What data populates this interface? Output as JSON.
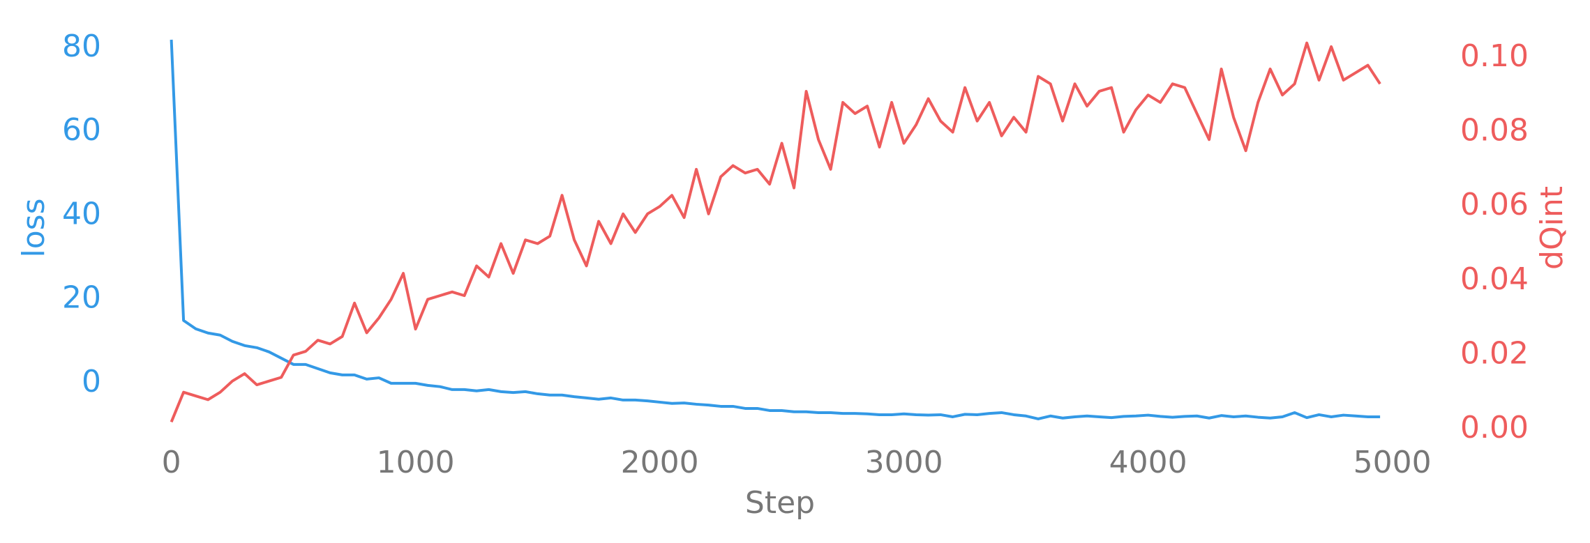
{
  "chart_data": {
    "type": "line",
    "xlabel": "Step",
    "ylabel": "loss",
    "y2label": "dQint",
    "xlim": [
      0,
      5000
    ],
    "xticks": [
      0,
      1000,
      2000,
      3000,
      4000,
      5000
    ],
    "ylim": [
      -11,
      83
    ],
    "yticks": [
      0,
      20,
      40,
      60,
      80
    ],
    "y2lim": [
      0,
      0.106
    ],
    "y2ticks": [
      {
        "value": 0,
        "label": "0.00"
      },
      {
        "value": 0.02,
        "label": "0.02"
      },
      {
        "value": 0.04,
        "label": "0.04"
      },
      {
        "value": 0.06,
        "label": "0.06"
      },
      {
        "value": 0.08,
        "label": "0.08"
      },
      {
        "value": 0.1,
        "label": "0.10"
      }
    ],
    "grid": false,
    "x": [
      0,
      50,
      100,
      150,
      200,
      250,
      300,
      350,
      400,
      450,
      500,
      550,
      600,
      650,
      700,
      750,
      800,
      850,
      900,
      950,
      1000,
      1050,
      1100,
      1150,
      1200,
      1250,
      1300,
      1350,
      1400,
      1450,
      1500,
      1550,
      1600,
      1650,
      1700,
      1750,
      1800,
      1850,
      1900,
      1950,
      2000,
      2050,
      2100,
      2150,
      2200,
      2250,
      2300,
      2350,
      2400,
      2450,
      2500,
      2550,
      2600,
      2650,
      2700,
      2750,
      2800,
      2850,
      2900,
      2950,
      3000,
      3050,
      3100,
      3150,
      3200,
      3250,
      3300,
      3350,
      3400,
      3450,
      3500,
      3550,
      3600,
      3650,
      3700,
      3750,
      3800,
      3850,
      3900,
      3950,
      4000,
      4050,
      4100,
      4150,
      4200,
      4250,
      4300,
      4350,
      4400,
      4450,
      4500,
      4550,
      4600,
      4650,
      4700,
      4750,
      4800,
      4850,
      4900,
      4950
    ],
    "series": [
      {
        "color": "#3399e6",
        "axis": "y",
        "values": [
          82,
          15,
          13,
          12,
          11.5,
          10,
          9,
          8.5,
          7.5,
          6,
          4.5,
          4.5,
          3.5,
          2.5,
          2,
          2,
          1,
          1.3,
          0,
          0,
          0,
          -0.5,
          -0.8,
          -1.5,
          -1.5,
          -1.8,
          -1.5,
          -2,
          -2.2,
          -2,
          -2.5,
          -2.8,
          -2.8,
          -3.2,
          -3.5,
          -3.8,
          -3.5,
          -4,
          -4,
          -4.2,
          -4.5,
          -4.8,
          -4.7,
          -5,
          -5.2,
          -5.5,
          -5.5,
          -6,
          -6,
          -6.5,
          -6.5,
          -6.8,
          -6.8,
          -7,
          -7,
          -7.2,
          -7.2,
          -7.3,
          -7.5,
          -7.5,
          -7.3,
          -7.5,
          -7.6,
          -7.5,
          -8,
          -7.4,
          -7.5,
          -7.2,
          -7,
          -7.5,
          -7.8,
          -8.5,
          -7.8,
          -8.3,
          -8,
          -7.8,
          -8,
          -8.2,
          -7.9,
          -7.8,
          -7.6,
          -7.9,
          -8.1,
          -7.9,
          -7.8,
          -8.3,
          -7.7,
          -8,
          -7.8,
          -8.1,
          -8.3,
          -8,
          -7,
          -8.2,
          -7.5,
          -8,
          -7.6,
          -7.8,
          -8,
          -8
        ]
      },
      {
        "color": "#ee5c5c",
        "axis": "y2",
        "values": [
          0.002,
          0.01,
          0.009,
          0.008,
          0.01,
          0.013,
          0.015,
          0.012,
          0.013,
          0.014,
          0.02,
          0.021,
          0.024,
          0.023,
          0.025,
          0.034,
          0.026,
          0.03,
          0.035,
          0.042,
          0.027,
          0.035,
          0.036,
          0.037,
          0.036,
          0.044,
          0.041,
          0.05,
          0.042,
          0.051,
          0.05,
          0.052,
          0.063,
          0.051,
          0.044,
          0.056,
          0.05,
          0.058,
          0.053,
          0.058,
          0.06,
          0.063,
          0.057,
          0.07,
          0.058,
          0.068,
          0.071,
          0.069,
          0.07,
          0.066,
          0.077,
          0.065,
          0.091,
          0.078,
          0.07,
          0.088,
          0.085,
          0.087,
          0.076,
          0.088,
          0.077,
          0.082,
          0.089,
          0.083,
          0.08,
          0.092,
          0.083,
          0.088,
          0.079,
          0.084,
          0.08,
          0.095,
          0.093,
          0.083,
          0.093,
          0.087,
          0.091,
          0.092,
          0.08,
          0.086,
          0.09,
          0.088,
          0.093,
          0.092,
          0.085,
          0.078,
          0.097,
          0.084,
          0.075,
          0.088,
          0.097,
          0.09,
          0.093,
          0.104,
          0.094,
          0.103,
          0.094,
          0.096,
          0.098,
          0.093
        ]
      }
    ]
  }
}
